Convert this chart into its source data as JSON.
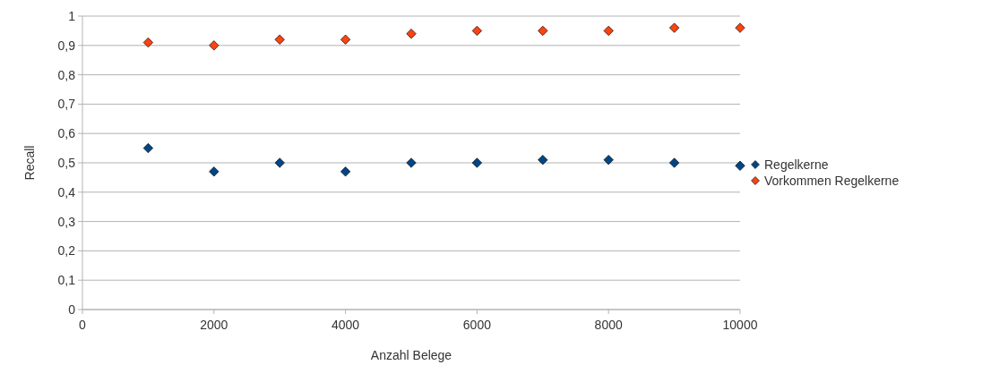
{
  "chart_data": {
    "type": "scatter",
    "xlabel": "Anzahl Belege",
    "ylabel": "Recall",
    "x": [
      1000,
      2000,
      3000,
      4000,
      5000,
      6000,
      7000,
      8000,
      9000,
      10000
    ],
    "series": [
      {
        "name": "Regelkerne",
        "color": "#004586",
        "values": [
          0.55,
          0.47,
          0.5,
          0.47,
          0.5,
          0.5,
          0.51,
          0.51,
          0.5,
          0.49
        ]
      },
      {
        "name": "Vorkommen Regelkerne",
        "color": "#ff420e",
        "values": [
          0.91,
          0.9,
          0.92,
          0.92,
          0.94,
          0.95,
          0.95,
          0.95,
          0.96,
          0.96
        ]
      }
    ],
    "xlim": [
      0,
      10000
    ],
    "xticks": [
      0,
      2000,
      4000,
      6000,
      8000,
      10000
    ],
    "ylim": [
      0,
      1
    ],
    "yticks": [
      0,
      {
        "value": 0.1,
        "label": "0,1"
      },
      {
        "value": 0.2,
        "label": "0,2"
      },
      {
        "value": 0.3,
        "label": "0,3"
      },
      {
        "value": 0.4,
        "label": "0,4"
      },
      {
        "value": 0.5,
        "label": "0,5"
      },
      {
        "value": 0.6,
        "label": "0,6"
      },
      {
        "value": 0.7,
        "label": "0,7"
      },
      {
        "value": 0.8,
        "label": "0,8"
      },
      {
        "value": 0.9,
        "label": "0,9"
      },
      1
    ],
    "grid": "y",
    "legend": "right",
    "marker": "diamond"
  }
}
